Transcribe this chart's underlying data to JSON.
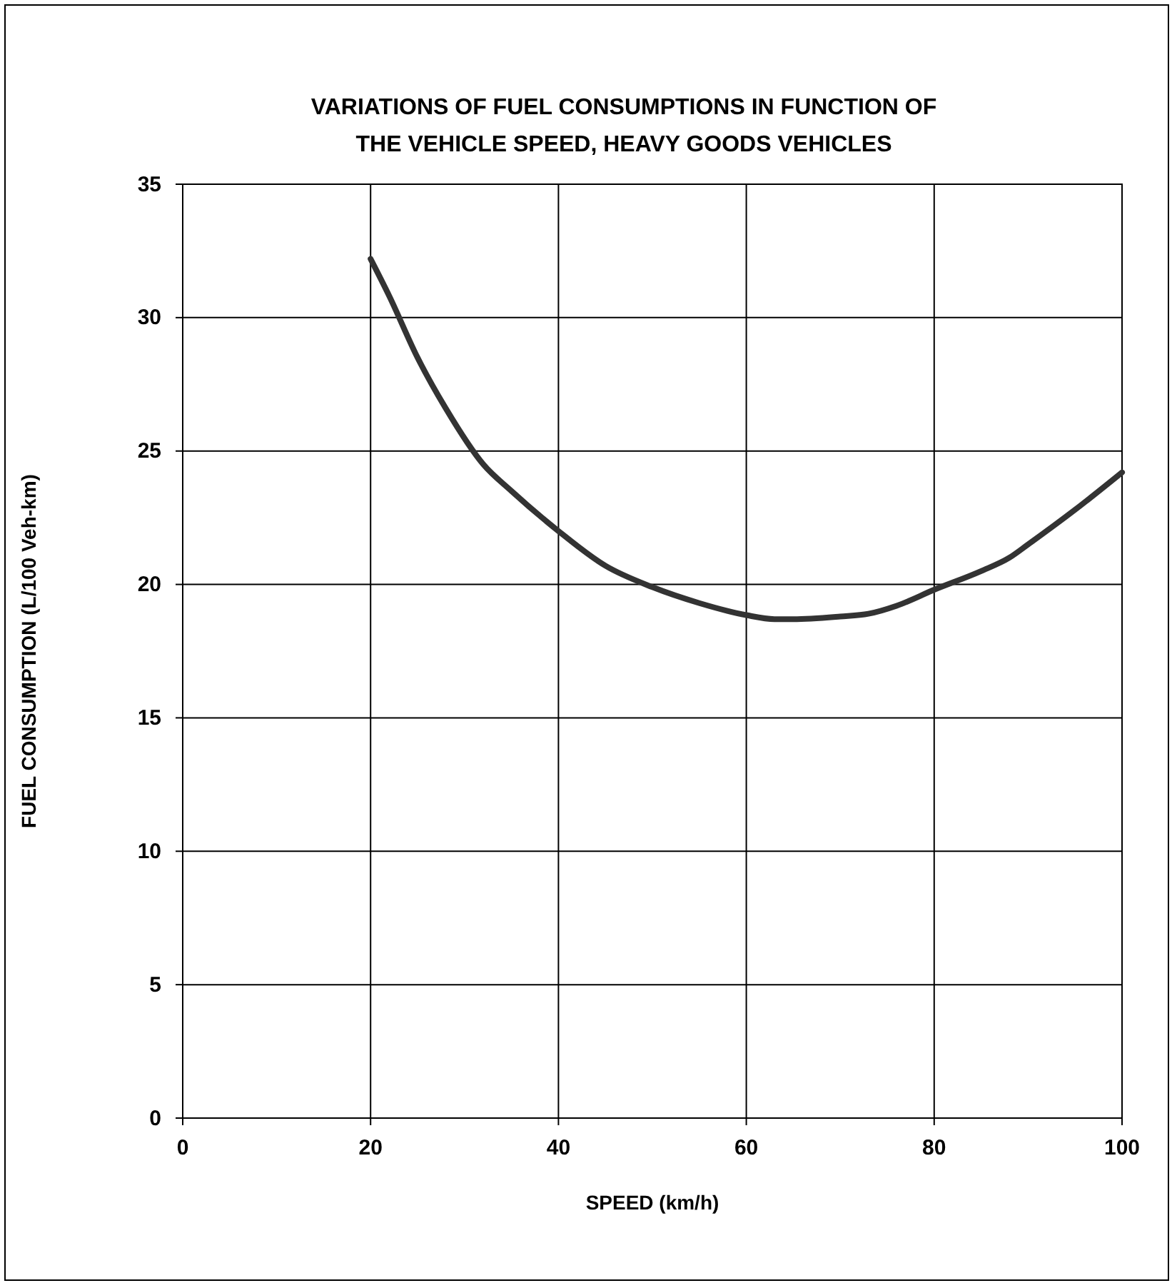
{
  "chart_data": {
    "type": "line",
    "title": "VARIATIONS OF FUEL CONSUMPTIONS IN FUNCTION OF THE VEHICLE SPEED, HEAVY GOODS VEHICLES",
    "xlabel": "SPEED (km/h)",
    "ylabel": "FUEL CONSUMPTION (L/100 Veh-km)",
    "x": [
      20,
      22,
      25,
      28,
      32,
      35,
      40,
      45,
      50,
      55,
      60,
      63,
      65,
      70,
      73,
      76,
      80,
      85,
      88,
      90,
      95,
      100
    ],
    "series": [
      {
        "color": "#333333",
        "values": [
          32.2,
          30.8,
          28.5,
          26.6,
          24.5,
          23.5,
          22,
          20.7,
          19.9,
          19.3,
          18.85,
          18.7,
          18.7,
          18.8,
          18.9,
          19.2,
          19.8,
          20.5,
          21,
          21.5,
          22.8,
          24.2
        ]
      }
    ],
    "xlim": [
      0,
      100
    ],
    "xticks": [
      0,
      20,
      40,
      60,
      80,
      100
    ],
    "ylim": [
      0,
      35
    ],
    "yticks": [
      0,
      5,
      10,
      15,
      20,
      25,
      30,
      35
    ],
    "grid": true,
    "marker": "none",
    "line_style": "solid"
  }
}
